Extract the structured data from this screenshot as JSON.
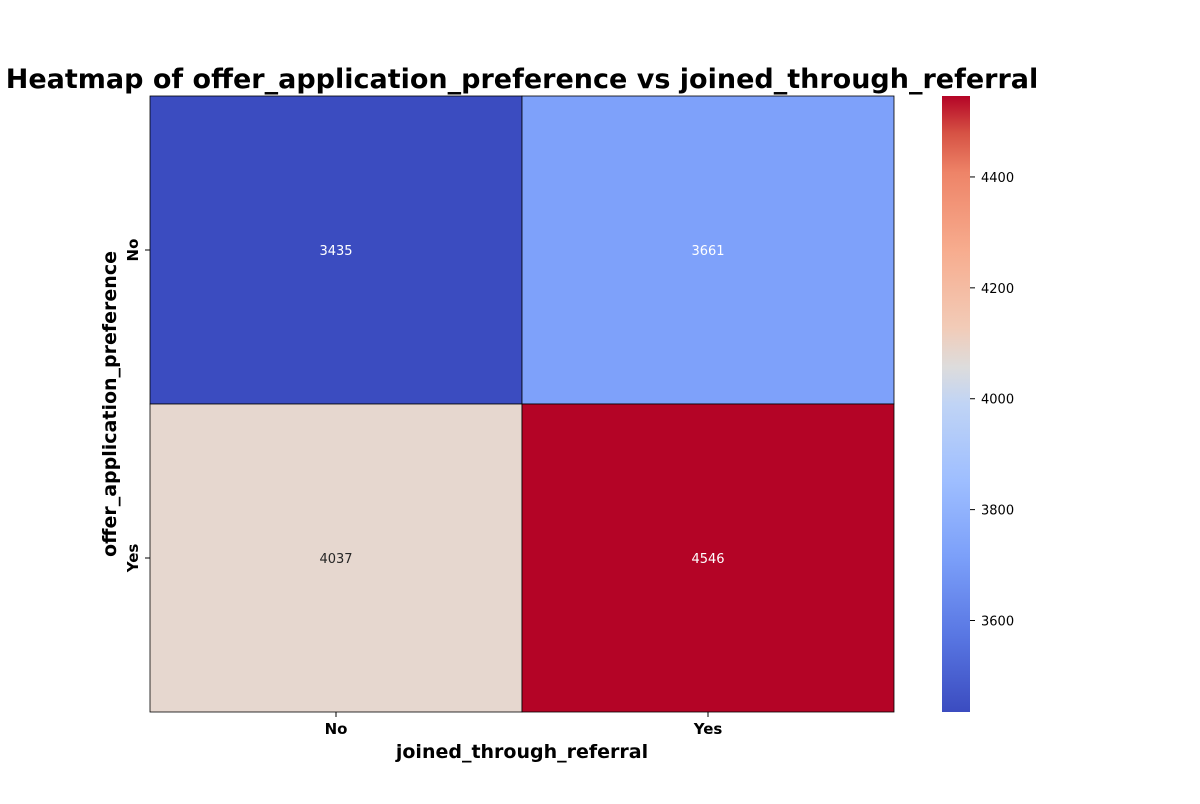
{
  "chart_data": {
    "type": "heatmap",
    "title": "Heatmap of offer_application_preference vs joined_through_referral",
    "xlabel": "joined_through_referral",
    "ylabel": "offer_application_preference",
    "x_categories": [
      "No",
      "Yes"
    ],
    "y_categories": [
      "No",
      "Yes"
    ],
    "values": [
      [
        3435,
        3661
      ],
      [
        4037,
        4546
      ]
    ],
    "colormap": "coolwarm",
    "vmin": 3435,
    "vmax": 4546,
    "colorbar": {
      "ticks": [
        3600,
        3800,
        4000,
        4200,
        4400
      ],
      "tick_labels": [
        "3600",
        "3800",
        "4000",
        "4200",
        "4400"
      ]
    },
    "cell_colors": [
      [
        "#3b4cc0",
        "#7ea1fa"
      ],
      [
        "#e6d7cf",
        "#b40426"
      ]
    ],
    "annotation_text_colors": [
      [
        "#ffffff",
        "#ffffff"
      ],
      [
        "#262626",
        "#ffffff"
      ]
    ]
  }
}
